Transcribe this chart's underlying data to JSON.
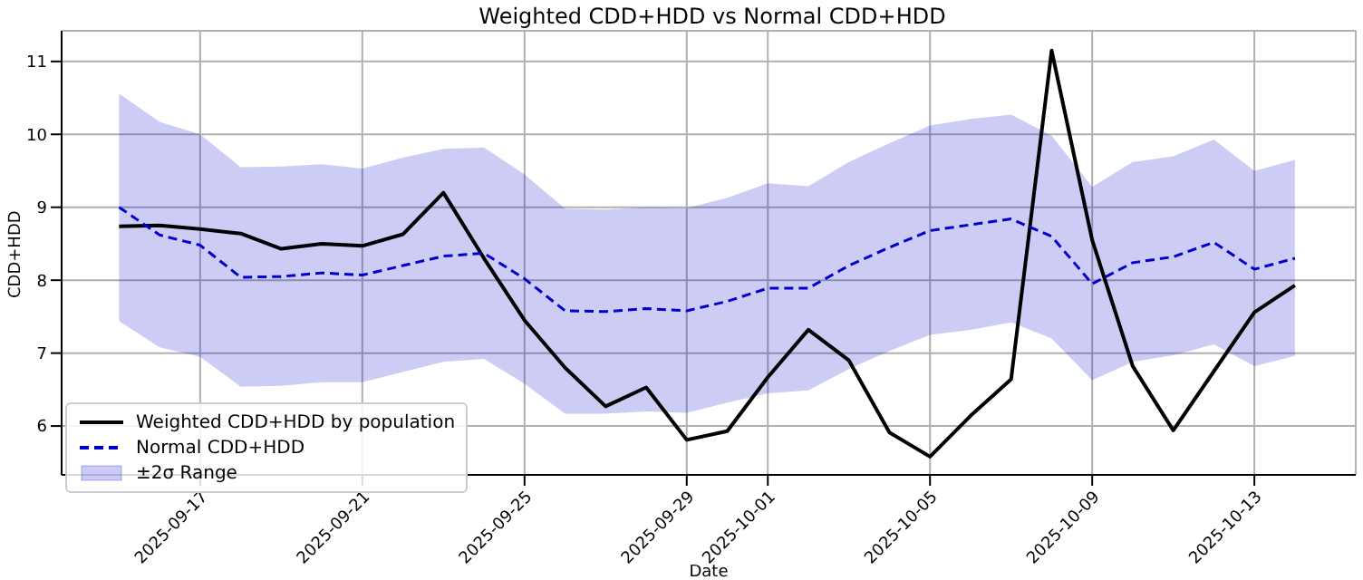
{
  "chart_data": {
    "type": "line",
    "title": "Weighted CDD+HDD vs Normal CDD+HDD",
    "xlabel": "Date",
    "ylabel": "CDD+HDD",
    "x": [
      "2025-09-15",
      "2025-09-16",
      "2025-09-17",
      "2025-09-18",
      "2025-09-19",
      "2025-09-20",
      "2025-09-21",
      "2025-09-22",
      "2025-09-23",
      "2025-09-24",
      "2025-09-25",
      "2025-09-26",
      "2025-09-27",
      "2025-09-28",
      "2025-09-29",
      "2025-09-30",
      "2025-10-01",
      "2025-10-02",
      "2025-10-03",
      "2025-10-04",
      "2025-10-05",
      "2025-10-06",
      "2025-10-07",
      "2025-10-08",
      "2025-10-09",
      "2025-10-10",
      "2025-10-11",
      "2025-10-12",
      "2025-10-13",
      "2025-10-14"
    ],
    "series": [
      {
        "type": "line",
        "name": "Weighted CDD+HDD by population",
        "color": "#000000",
        "line_style": "solid",
        "values": [
          8.74,
          8.75,
          8.7,
          8.64,
          8.43,
          8.5,
          8.47,
          8.63,
          9.2,
          8.3,
          7.45,
          6.8,
          6.27,
          6.53,
          5.81,
          5.93,
          6.67,
          7.32,
          6.9,
          5.91,
          5.58,
          6.14,
          6.64,
          11.15,
          8.55,
          6.82,
          5.94,
          6.75,
          7.56,
          7.93
        ]
      },
      {
        "type": "line",
        "name": "Normal CDD+HDD",
        "color": "#0000cc",
        "line_style": "dashed",
        "values": [
          9.0,
          8.62,
          8.48,
          8.04,
          8.05,
          8.1,
          8.07,
          8.2,
          8.33,
          8.37,
          8.02,
          7.58,
          7.57,
          7.61,
          7.58,
          7.71,
          7.89,
          7.89,
          8.2,
          8.45,
          8.68,
          8.76,
          8.84,
          8.6,
          7.95,
          8.24,
          8.32,
          8.52,
          8.15,
          8.3
        ],
        "lower": [
          7.44,
          7.08,
          6.95,
          6.54,
          6.55,
          6.6,
          6.6,
          6.74,
          6.88,
          6.92,
          6.58,
          6.17,
          6.17,
          6.2,
          6.18,
          6.32,
          6.45,
          6.49,
          6.78,
          7.03,
          7.25,
          7.32,
          7.42,
          7.2,
          6.63,
          6.88,
          6.97,
          7.12,
          6.82,
          6.96
        ],
        "upper": [
          10.56,
          10.17,
          10.0,
          9.55,
          9.56,
          9.59,
          9.53,
          9.68,
          9.8,
          9.82,
          9.45,
          8.98,
          8.97,
          9.0,
          8.99,
          9.13,
          9.33,
          9.29,
          9.62,
          9.88,
          10.12,
          10.21,
          10.27,
          9.98,
          9.28,
          9.62,
          9.7,
          9.93,
          9.5,
          9.65
        ]
      }
    ],
    "annotations": [
      "±2σ Range"
    ],
    "xlim": [
      "2025-09-13T14:00",
      "2025-10-15T12:00"
    ],
    "xticks": [
      "2025-09-17",
      "2025-09-21",
      "2025-09-25",
      "2025-09-29",
      "2025-10-01",
      "2025-10-05",
      "2025-10-09",
      "2025-10-13"
    ],
    "ylim": [
      5.33,
      11.42
    ],
    "yticks": [
      6,
      7,
      8,
      9,
      10,
      11
    ],
    "grid": true,
    "legend": "bottom left"
  }
}
